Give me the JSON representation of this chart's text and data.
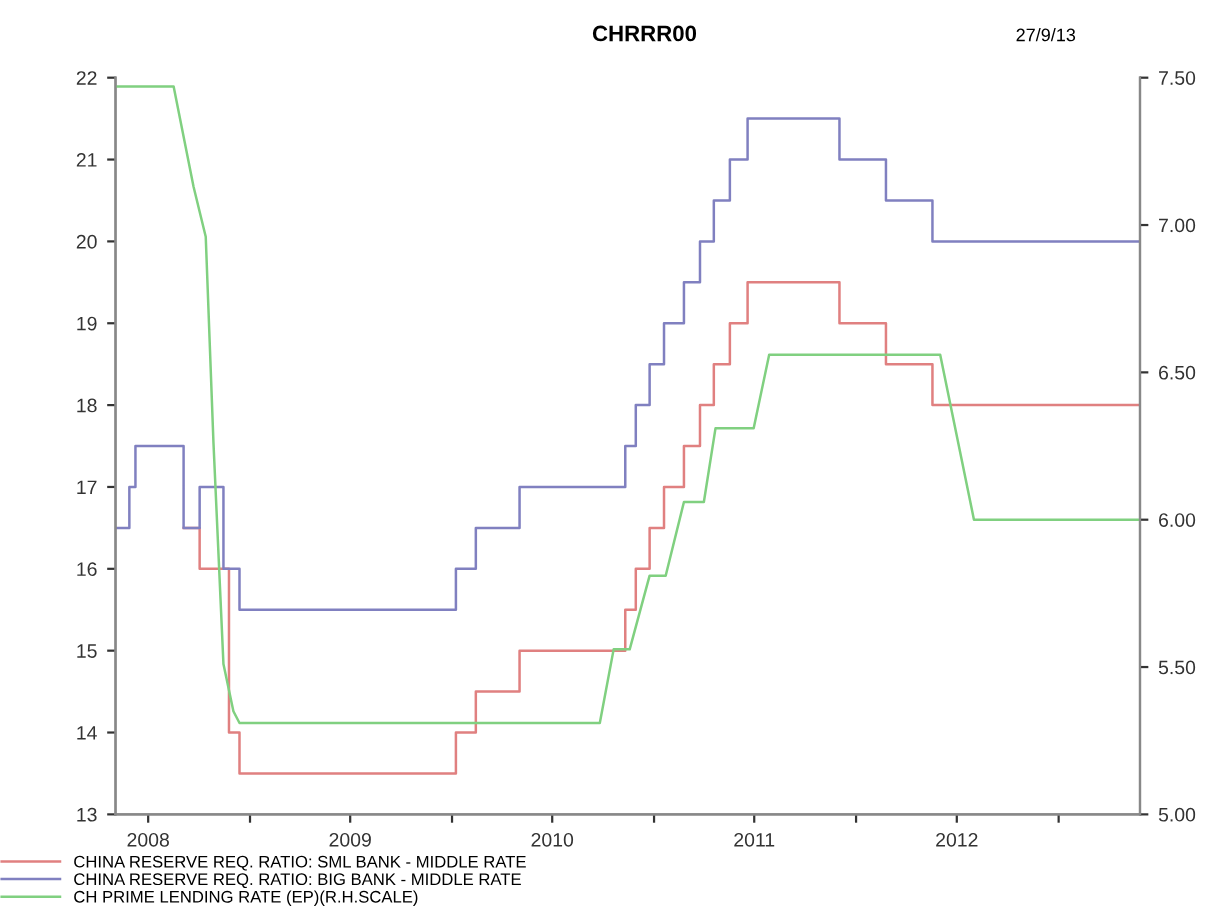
{
  "chart_data": {
    "type": "line",
    "title": "CHRRR00",
    "annotations": [
      "27/9/13"
    ],
    "series": [
      {
        "name": "CHINA RESERVE REQ. RATIO: SML BANK - MIDDLE RATE",
        "type": "step",
        "color": "#e08080",
        "x": [
          "2008-09-03",
          "2008-10-02",
          "2008-11-24",
          "2008-12-13",
          "2010-01-08",
          "2010-02-13",
          "2010-05-03",
          "2010-11-10",
          "2010-11-29",
          "2010-12-24",
          "2011-01-19",
          "2011-02-24",
          "2011-03-25",
          "2011-04-19",
          "2011-05-18",
          "2011-06-19",
          "2011-12-02",
          "2012-02-24",
          "2012-05-18",
          "2013-05-28"
        ],
        "values": [
          16.5,
          16,
          14,
          13.5,
          14,
          14.5,
          15,
          15.5,
          16,
          16.5,
          17,
          17.5,
          18,
          18.5,
          19,
          19.5,
          19,
          18.5,
          18,
          18
        ]
      },
      {
        "name": "CHINA RESERVE REQ. RATIO: BIG BANK - MIDDLE RATE",
        "type": "step",
        "color": "#8080c0",
        "x": [
          "2008-05-03",
          "2008-05-28",
          "2008-06-08",
          "2008-09-03",
          "2008-10-02",
          "2008-11-14",
          "2008-12-13",
          "2010-01-08",
          "2010-02-13",
          "2010-05-03",
          "2010-11-10",
          "2010-11-29",
          "2010-12-24",
          "2011-01-19",
          "2011-02-24",
          "2011-03-25",
          "2011-04-19",
          "2011-05-18",
          "2011-06-19",
          "2011-12-02",
          "2012-02-24",
          "2012-05-18",
          "2013-05-28"
        ],
        "values": [
          16.5,
          17,
          17.5,
          16.5,
          17,
          16,
          15.5,
          16,
          16.5,
          17,
          17.5,
          18,
          18.5,
          19,
          19.5,
          20,
          20.5,
          21,
          21.5,
          21,
          20.5,
          20,
          20
        ]
      },
      {
        "name": "CH PRIME LENDING RATE (EP)(R.H.SCALE)",
        "type": "line",
        "axis": "y2",
        "color": "#80d080",
        "x": [
          "2008-05-03",
          "2008-08-16",
          "2008-09-21",
          "2008-10-13",
          "2008-10-27",
          "2008-11-14",
          "2008-12-02",
          "2008-12-13",
          "2010-09-25",
          "2010-10-20",
          "2010-11-18",
          "2010-12-24",
          "2011-01-22",
          "2011-02-24",
          "2011-04-01",
          "2011-04-22",
          "2011-06-30",
          "2011-07-28",
          "2012-06-01",
          "2012-08-01",
          "2013-05-28"
        ],
        "values": [
          7.47,
          7.47,
          7.13,
          6.96,
          6.26,
          5.51,
          5.35,
          5.31,
          5.31,
          5.56,
          5.56,
          5.81,
          5.81,
          6.06,
          6.06,
          6.31,
          6.31,
          6.56,
          6.56,
          6.0,
          6.0
        ]
      }
    ],
    "xlim": [
      "2008-05-03",
      "2013-05-28"
    ],
    "xticks": [
      {
        "value": "2008-07-01",
        "label": "2008"
      },
      {
        "value": "2009-01-01",
        "label": null
      },
      {
        "value": "2009-07-01",
        "label": "2009"
      },
      {
        "value": "2010-01-01",
        "label": null
      },
      {
        "value": "2010-07-01",
        "label": "2010"
      },
      {
        "value": "2011-01-01",
        "label": null
      },
      {
        "value": "2011-07-01",
        "label": "2011"
      },
      {
        "value": "2012-01-01",
        "label": null
      },
      {
        "value": "2012-07-01",
        "label": "2012"
      },
      {
        "value": "2013-01-01",
        "label": null
      }
    ],
    "ylim": [
      13,
      22
    ],
    "yticks": [
      13,
      14,
      15,
      16,
      17,
      18,
      19,
      20,
      21,
      22
    ],
    "y2lim": [
      5,
      7.5
    ],
    "y2ticks": [
      {
        "value": 5,
        "label": "5.00"
      },
      {
        "value": 5.5,
        "label": "5.50"
      },
      {
        "value": 6,
        "label": "6.00"
      },
      {
        "value": 6.5,
        "label": "6.50"
      },
      {
        "value": 7,
        "label": "7.00"
      },
      {
        "value": 7.5,
        "label": "7.50"
      }
    ],
    "legend": "bottom",
    "grid": false
  }
}
